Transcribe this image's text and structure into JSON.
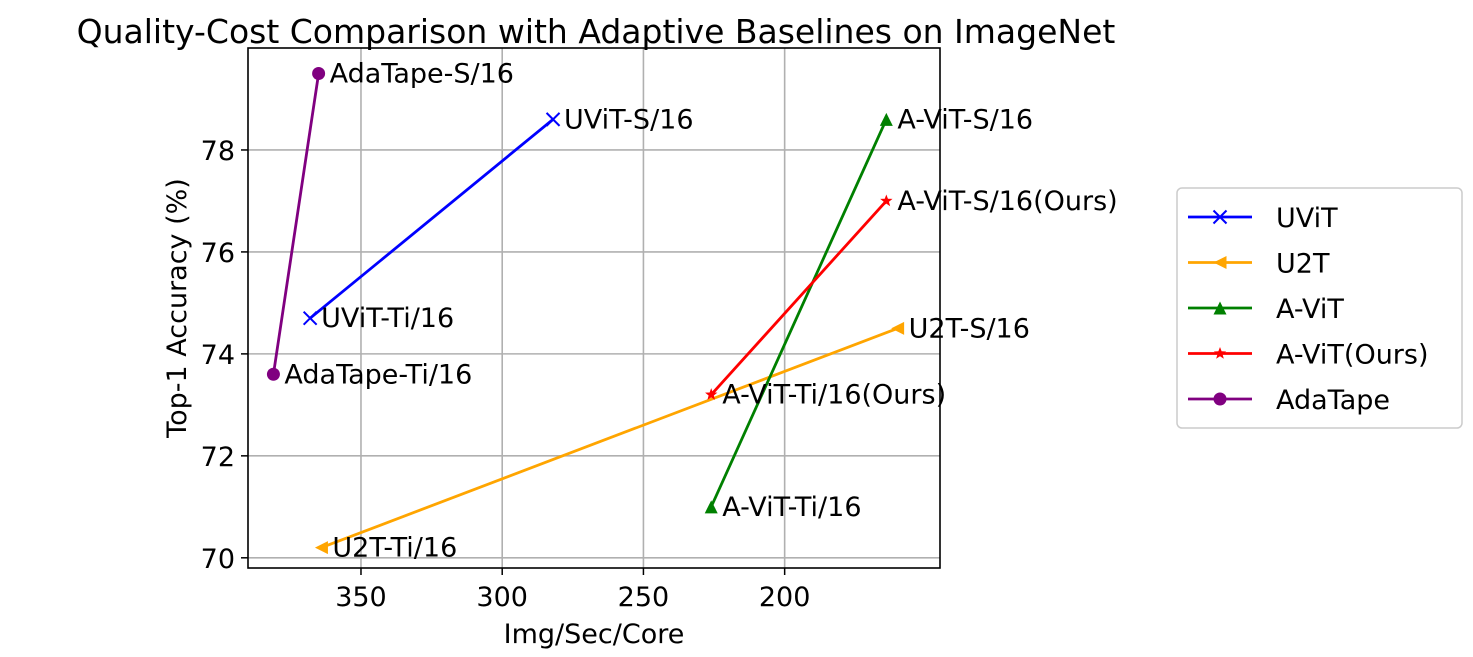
{
  "chart_data": {
    "type": "line",
    "title": "Quality-Cost Comparison with Adaptive Baselines on ImageNet",
    "xlabel": "Img/Sec/Core",
    "ylabel": "Top-1 Accuracy (%)",
    "x_inverted": true,
    "xlim": [
      390,
      145
    ],
    "ylim": [
      69.8,
      80.0
    ],
    "xticks": [
      350,
      300,
      250,
      200
    ],
    "yticks": [
      70,
      72,
      74,
      76,
      78
    ],
    "grid": true,
    "legend_position": "outside-right",
    "series": [
      {
        "name": "UViT",
        "color": "#0000ff",
        "marker": "x",
        "x": [
          368,
          282
        ],
        "y": [
          74.7,
          78.6
        ],
        "point_labels": [
          "UViT-Ti/16",
          "UViT-S/16"
        ]
      },
      {
        "name": "U2T",
        "color": "#ffa500",
        "marker": "triangle-left",
        "x": [
          364,
          160
        ],
        "y": [
          70.2,
          74.5
        ],
        "point_labels": [
          "U2T-Ti/16",
          "U2T-S/16"
        ]
      },
      {
        "name": "A-ViT",
        "color": "#008000",
        "marker": "triangle-up",
        "x": [
          226,
          164
        ],
        "y": [
          71.0,
          78.6
        ],
        "point_labels": [
          "A-ViT-Ti/16",
          "A-ViT-S/16"
        ]
      },
      {
        "name": "A-ViT(Ours)",
        "color": "#ff0000",
        "marker": "star",
        "x": [
          226,
          164
        ],
        "y": [
          73.2,
          77.0
        ],
        "point_labels": [
          "A-ViT-Ti/16(Ours)",
          "A-ViT-S/16(Ours)"
        ]
      },
      {
        "name": "AdaTape",
        "color": "#800080",
        "marker": "circle",
        "x": [
          381,
          365
        ],
        "y": [
          73.6,
          79.5
        ],
        "point_labels": [
          "AdaTape-Ti/16",
          "AdaTape-S/16"
        ]
      }
    ]
  }
}
